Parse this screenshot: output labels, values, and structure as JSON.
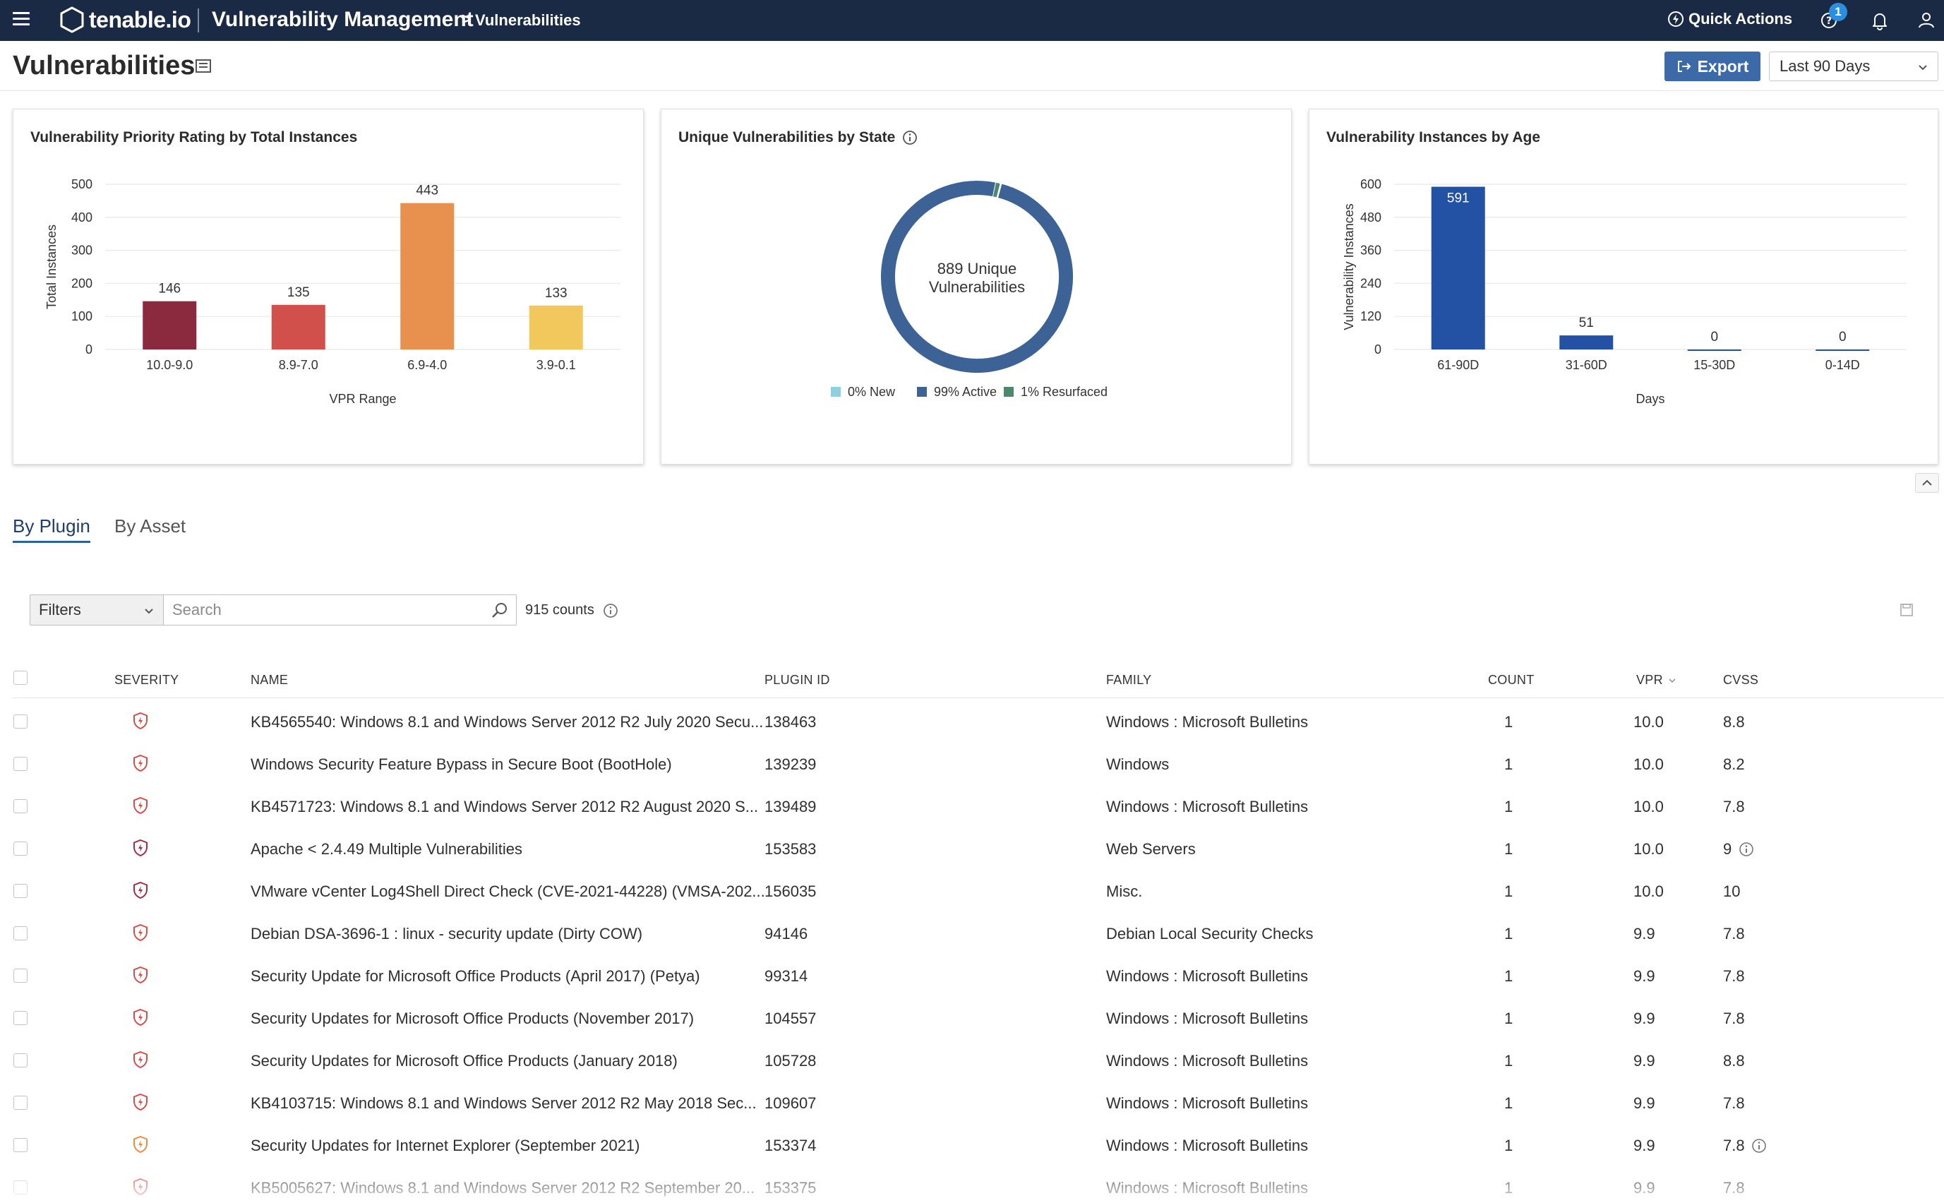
{
  "topbar": {
    "logo_text": "tenable.io",
    "app_title": "Vulnerability Management",
    "breadcrumb_sep": ">",
    "breadcrumb": "Vulnerabilities",
    "quick_actions": "Quick Actions",
    "notification_count": "1"
  },
  "header": {
    "title": "Vulnerabilities",
    "export_label": "Export",
    "range_value": "Last 90 Days"
  },
  "cards": {
    "vpr": {
      "title": "Vulnerability Priority Rating by Total Instances",
      "chart_data": {
        "type": "bar",
        "categories": [
          "10.0-9.0",
          "8.9-7.0",
          "6.9-4.0",
          "3.9-0.1"
        ],
        "values": [
          146,
          135,
          443,
          133
        ],
        "colors": [
          "#8b2a3e",
          "#d1504c",
          "#e8904e",
          "#f2c85c"
        ],
        "xlabel": "VPR Range",
        "ylabel": "Total Instances",
        "ylim": [
          0,
          500
        ],
        "yticks": [
          0,
          100,
          200,
          300,
          400,
          500
        ]
      }
    },
    "state": {
      "title": "Unique Vulnerabilities by State",
      "center_line1": "889 Unique",
      "center_line2": "Vulnerabilities",
      "chart_data": {
        "type": "pie",
        "categories": [
          "0% New",
          "99% Active",
          "1% Resurfaced"
        ],
        "values": [
          0.2,
          99,
          0.8
        ],
        "colors": [
          "#8dd0e0",
          "#3d6396",
          "#4a8a6a"
        ],
        "legend": "bottom"
      }
    },
    "age": {
      "title": "Vulnerability Instances by Age",
      "chart_data": {
        "type": "bar",
        "categories": [
          "61-90D",
          "31-60D",
          "15-30D",
          "0-14D"
        ],
        "values": [
          591,
          51,
          0,
          0
        ],
        "colors": [
          "#2352a4",
          "#2352a4",
          "#2352a4",
          "#2352a4"
        ],
        "xlabel": "Days",
        "ylabel": "Vulnerability Instances",
        "ylim": [
          0,
          600
        ],
        "yticks": [
          0,
          120,
          240,
          360,
          480,
          600
        ]
      }
    }
  },
  "tabs": {
    "by_plugin": "By Plugin",
    "by_asset": "By Asset"
  },
  "filters": {
    "label": "Filters",
    "search_placeholder": "Search",
    "counts": "915 counts"
  },
  "table": {
    "headers": {
      "severity": "SEVERITY",
      "name": "NAME",
      "plugin_id": "PLUGIN ID",
      "family": "FAMILY",
      "count": "COUNT",
      "vpr": "VPR",
      "cvss": "CVSS"
    },
    "rows": [
      {
        "severity": "critical",
        "name": "KB4565540: Windows 8.1 and Windows Server 2012 R2 July 2020 Secu...",
        "plugin_id": "138463",
        "family": "Windows : Microsoft Bulletins",
        "count": "1",
        "vpr": "10.0",
        "cvss": "8.8",
        "info": false
      },
      {
        "severity": "critical",
        "name": "Windows Security Feature Bypass in Secure Boot (BootHole)",
        "plugin_id": "139239",
        "family": "Windows",
        "count": "1",
        "vpr": "10.0",
        "cvss": "8.2",
        "info": false
      },
      {
        "severity": "critical",
        "name": "KB4571723: Windows 8.1 and Windows Server 2012 R2 August 2020 S...",
        "plugin_id": "139489",
        "family": "Windows : Microsoft Bulletins",
        "count": "1",
        "vpr": "10.0",
        "cvss": "7.8",
        "info": false
      },
      {
        "severity": "critical-dark",
        "name": "Apache < 2.4.49 Multiple Vulnerabilities",
        "plugin_id": "153583",
        "family": "Web Servers",
        "count": "1",
        "vpr": "10.0",
        "cvss": "9",
        "info": true
      },
      {
        "severity": "critical-dark",
        "name": "VMware vCenter Log4Shell Direct Check (CVE-2021-44228) (VMSA-202...",
        "plugin_id": "156035",
        "family": "Misc.",
        "count": "1",
        "vpr": "10.0",
        "cvss": "10",
        "info": false
      },
      {
        "severity": "critical",
        "name": "Debian DSA-3696-1 : linux - security update (Dirty COW)",
        "plugin_id": "94146",
        "family": "Debian Local Security Checks",
        "count": "1",
        "vpr": "9.9",
        "cvss": "7.8",
        "info": false
      },
      {
        "severity": "critical",
        "name": "Security Update for Microsoft Office Products (April 2017) (Petya)",
        "plugin_id": "99314",
        "family": "Windows : Microsoft Bulletins",
        "count": "1",
        "vpr": "9.9",
        "cvss": "7.8",
        "info": false
      },
      {
        "severity": "critical",
        "name": "Security Updates for Microsoft Office Products (November 2017)",
        "plugin_id": "104557",
        "family": "Windows : Microsoft Bulletins",
        "count": "1",
        "vpr": "9.9",
        "cvss": "7.8",
        "info": false
      },
      {
        "severity": "critical",
        "name": "Security Updates for Microsoft Office Products (January 2018)",
        "plugin_id": "105728",
        "family": "Windows : Microsoft Bulletins",
        "count": "1",
        "vpr": "9.9",
        "cvss": "8.8",
        "info": false
      },
      {
        "severity": "critical",
        "name": "KB4103715: Windows 8.1 and Windows Server 2012 R2 May 2018 Sec...",
        "plugin_id": "109607",
        "family": "Windows : Microsoft Bulletins",
        "count": "1",
        "vpr": "9.9",
        "cvss": "7.8",
        "info": false
      },
      {
        "severity": "high",
        "name": "Security Updates for Internet Explorer (September 2021)",
        "plugin_id": "153374",
        "family": "Windows : Microsoft Bulletins",
        "count": "1",
        "vpr": "9.9",
        "cvss": "7.8",
        "info": true
      },
      {
        "severity": "critical",
        "name": "KB5005627: Windows 8.1 and Windows Server 2012 R2 September 20...",
        "plugin_id": "153375",
        "family": "Windows : Microsoft Bulletins",
        "count": "1",
        "vpr": "9.9",
        "cvss": "7.8",
        "info": false
      }
    ]
  },
  "colors": {
    "topbar": "#1b2a44",
    "accent": "#3c6aa8",
    "critical": "#d94a4a",
    "critical_dark": "#a8293f",
    "high": "#f08a3c"
  }
}
